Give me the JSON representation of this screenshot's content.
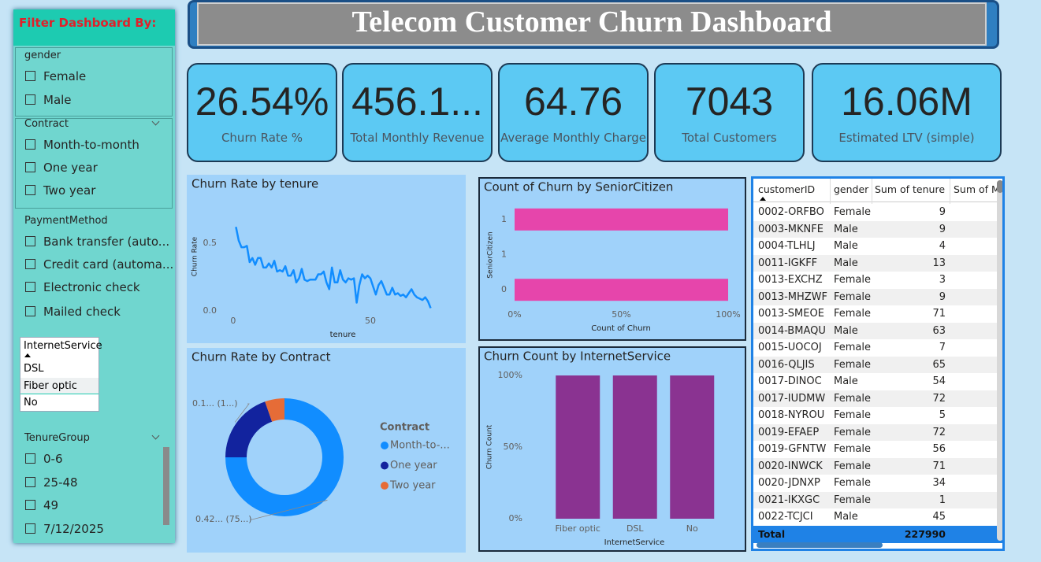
{
  "filter_panel": {
    "title": "Filter Dashboard By:",
    "slicers": [
      {
        "title": "gender",
        "items": [
          "Female",
          "Male"
        ]
      },
      {
        "title": "Contract",
        "items": [
          "Month-to-month",
          "One year",
          "Two year"
        ]
      },
      {
        "title": "PaymentMethod",
        "items": [
          "Bank transfer (auto...",
          "Credit card (automa...",
          "Electronic check",
          "Mailed check"
        ]
      },
      {
        "title": "InternetService",
        "items": [
          "DSL",
          "Fiber optic",
          "No"
        ]
      },
      {
        "title": "TenureGroup",
        "items": [
          "0-6",
          "25-48",
          "49",
          "7/12/2025"
        ]
      }
    ]
  },
  "header": {
    "title": "Telecom Customer Churn Dashboard"
  },
  "kpis": [
    {
      "value": "26.54%",
      "label": "Churn Rate %"
    },
    {
      "value": "456.1...",
      "label": "Total Monthly Revenue"
    },
    {
      "value": "64.76",
      "label": "Average Monthly Charge"
    },
    {
      "value": 7043,
      "label": "Total Customers"
    },
    {
      "value": "16.06M",
      "label": "Estimated LTV (simple)"
    }
  ],
  "chart_data": [
    {
      "type": "line",
      "title": "Churn Rate by tenure",
      "x_label": "tenure",
      "y_label": "Churn Rate",
      "color": "#118dff",
      "x": [
        1,
        2,
        3,
        4,
        5,
        6,
        7,
        8,
        9,
        10,
        11,
        12,
        13,
        14,
        15,
        16,
        17,
        18,
        19,
        20,
        21,
        22,
        23,
        24,
        25,
        26,
        27,
        28,
        29,
        30,
        31,
        32,
        33,
        34,
        35,
        36,
        37,
        38,
        39,
        40,
        41,
        42,
        43,
        44,
        45,
        46,
        47,
        48,
        49,
        50,
        51,
        52,
        53,
        54,
        55,
        56,
        57,
        58,
        59,
        60,
        61,
        62,
        63,
        64,
        65,
        66,
        67,
        68,
        69,
        70,
        71,
        72
      ],
      "values": [
        0.62,
        0.52,
        0.47,
        0.47,
        0.48,
        0.36,
        0.39,
        0.34,
        0.39,
        0.39,
        0.32,
        0.32,
        0.35,
        0.32,
        0.37,
        0.29,
        0.3,
        0.29,
        0.33,
        0.26,
        0.26,
        0.3,
        0.21,
        0.24,
        0.31,
        0.23,
        0.22,
        0.23,
        0.23,
        0.23,
        0.27,
        0.27,
        0.29,
        0.21,
        0.16,
        0.32,
        0.21,
        0.21,
        0.3,
        0.23,
        0.21,
        0.24,
        0.23,
        0.24,
        0.06,
        0.19,
        0.27,
        0.24,
        0.26,
        0.24,
        0.18,
        0.12,
        0.19,
        0.22,
        0.17,
        0.12,
        0.12,
        0.17,
        0.12,
        0.13,
        0.11,
        0.12,
        0.1,
        0.13,
        0.16,
        0.12,
        0.1,
        0.09,
        0.08,
        0.1,
        0.07,
        0.02
      ],
      "xlim": [
        -4,
        74
      ],
      "xticks": [
        0,
        50
      ],
      "ylim": [
        -0.03,
        0.75
      ],
      "yticks": [
        {
          "value": 0,
          "label": "0.0"
        },
        0.5
      ]
    },
    {
      "type": "hbar",
      "title": "Count of Churn by SeniorCitizen",
      "x_label": "Count of Churn",
      "y_label": "SeniorCitizen",
      "color": "#e645ab",
      "y": [
        1,
        0
      ],
      "values": [
        100,
        100
      ],
      "ylim": [
        -0.3,
        1.3
      ],
      "yticks": [
        0,
        {
          "value": 0.5,
          "label": "1"
        },
        1
      ],
      "xlim": [
        0,
        100
      ],
      "xticks": [
        {
          "value": 0,
          "label": "0%"
        },
        {
          "value": 50,
          "label": "50%"
        },
        {
          "value": 100,
          "label": "100%"
        }
      ]
    },
    {
      "type": "donut",
      "title": "Churn Rate by Contract",
      "legend_title": "Contract",
      "categories": [
        "Month-to-...",
        "One year",
        "Two year"
      ],
      "values": [
        0.42,
        0.11,
        0.03
      ],
      "value_labels": [
        "0.42... (75...)",
        "0.1... (1...)",
        null
      ],
      "colors": [
        "#118dff",
        "#12239e",
        "#e66c37"
      ]
    },
    {
      "type": "bar",
      "title": "Churn Count by InternetService",
      "x_label": "InternetService",
      "y_label": "Churn Count",
      "color": "#8a3391",
      "categories": [
        "Fiber optic",
        "DSL",
        "No"
      ],
      "values": [
        100,
        100,
        100
      ],
      "ylim": [
        0,
        100
      ],
      "yticks": [
        {
          "value": 0,
          "label": "0%"
        },
        {
          "value": 50,
          "label": "50%"
        },
        {
          "value": 100,
          "label": "100%"
        }
      ]
    }
  ],
  "table": {
    "columns": [
      "customerID",
      "gender",
      "Sum of tenure",
      "Sum of M"
    ],
    "rows": [
      [
        "0002-ORFBO",
        "Female",
        9
      ],
      [
        "0003-MKNFE",
        "Male",
        9
      ],
      [
        "0004-TLHLJ",
        "Male",
        4
      ],
      [
        "0011-IGKFF",
        "Male",
        13
      ],
      [
        "0013-EXCHZ",
        "Female",
        3
      ],
      [
        "0013-MHZWF",
        "Female",
        9
      ],
      [
        "0013-SMEOE",
        "Female",
        71
      ],
      [
        "0014-BMAQU",
        "Male",
        63
      ],
      [
        "0015-UOCOJ",
        "Female",
        7
      ],
      [
        "0016-QLJIS",
        "Female",
        65
      ],
      [
        "0017-DINOC",
        "Male",
        54
      ],
      [
        "0017-IUDMW",
        "Female",
        72
      ],
      [
        "0018-NYROU",
        "Female",
        5
      ],
      [
        "0019-EFAEP",
        "Female",
        72
      ],
      [
        "0019-GFNTW",
        "Female",
        56
      ],
      [
        "0020-INWCK",
        "Female",
        71
      ],
      [
        "0020-JDNXP",
        "Female",
        34
      ],
      [
        "0021-IKXGC",
        "Female",
        1
      ],
      [
        "0022-TCJCI",
        "Male",
        45
      ]
    ],
    "total": {
      "label": "Total",
      "value": 227990
    }
  }
}
